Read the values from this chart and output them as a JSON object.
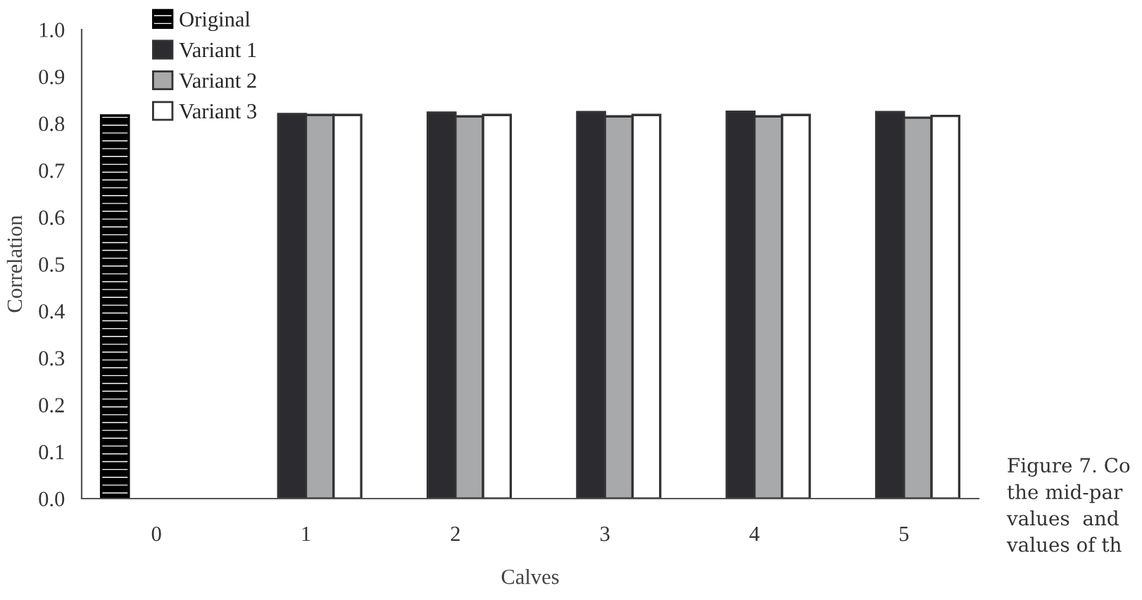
{
  "chart_data": {
    "type": "bar",
    "xlabel": "Calves",
    "ylabel": "Correlation",
    "categories": [
      "0",
      "1",
      "2",
      "3",
      "4",
      "5"
    ],
    "series": [
      {
        "name": "Original",
        "color": "#000000",
        "values": [
          0.817,
          null,
          null,
          null,
          null,
          null
        ]
      },
      {
        "name": "Variant 1",
        "color": "#2b2b30",
        "values": [
          null,
          0.82,
          0.823,
          0.824,
          0.825,
          0.824
        ]
      },
      {
        "name": "Variant 2",
        "color": "#a8a9ab",
        "values": [
          null,
          0.818,
          0.815,
          0.815,
          0.815,
          0.812
        ]
      },
      {
        "name": "Variant 3",
        "color": "#ffffff",
        "values": [
          null,
          0.818,
          0.818,
          0.818,
          0.818,
          0.816
        ]
      }
    ],
    "ylim": [
      0,
      1
    ],
    "yticks": [
      {
        "value": 0,
        "label": "0.0"
      },
      0.1,
      0.2,
      0.3,
      0.4,
      0.5,
      0.6,
      0.7,
      0.8,
      0.9,
      {
        "value": 1,
        "label": "1.0"
      }
    ],
    "legend": "top left",
    "grid": false,
    "annotations": [
      "Figure 7. Co\nthe mid-par\nvalues  and\nvalues of th"
    ]
  }
}
